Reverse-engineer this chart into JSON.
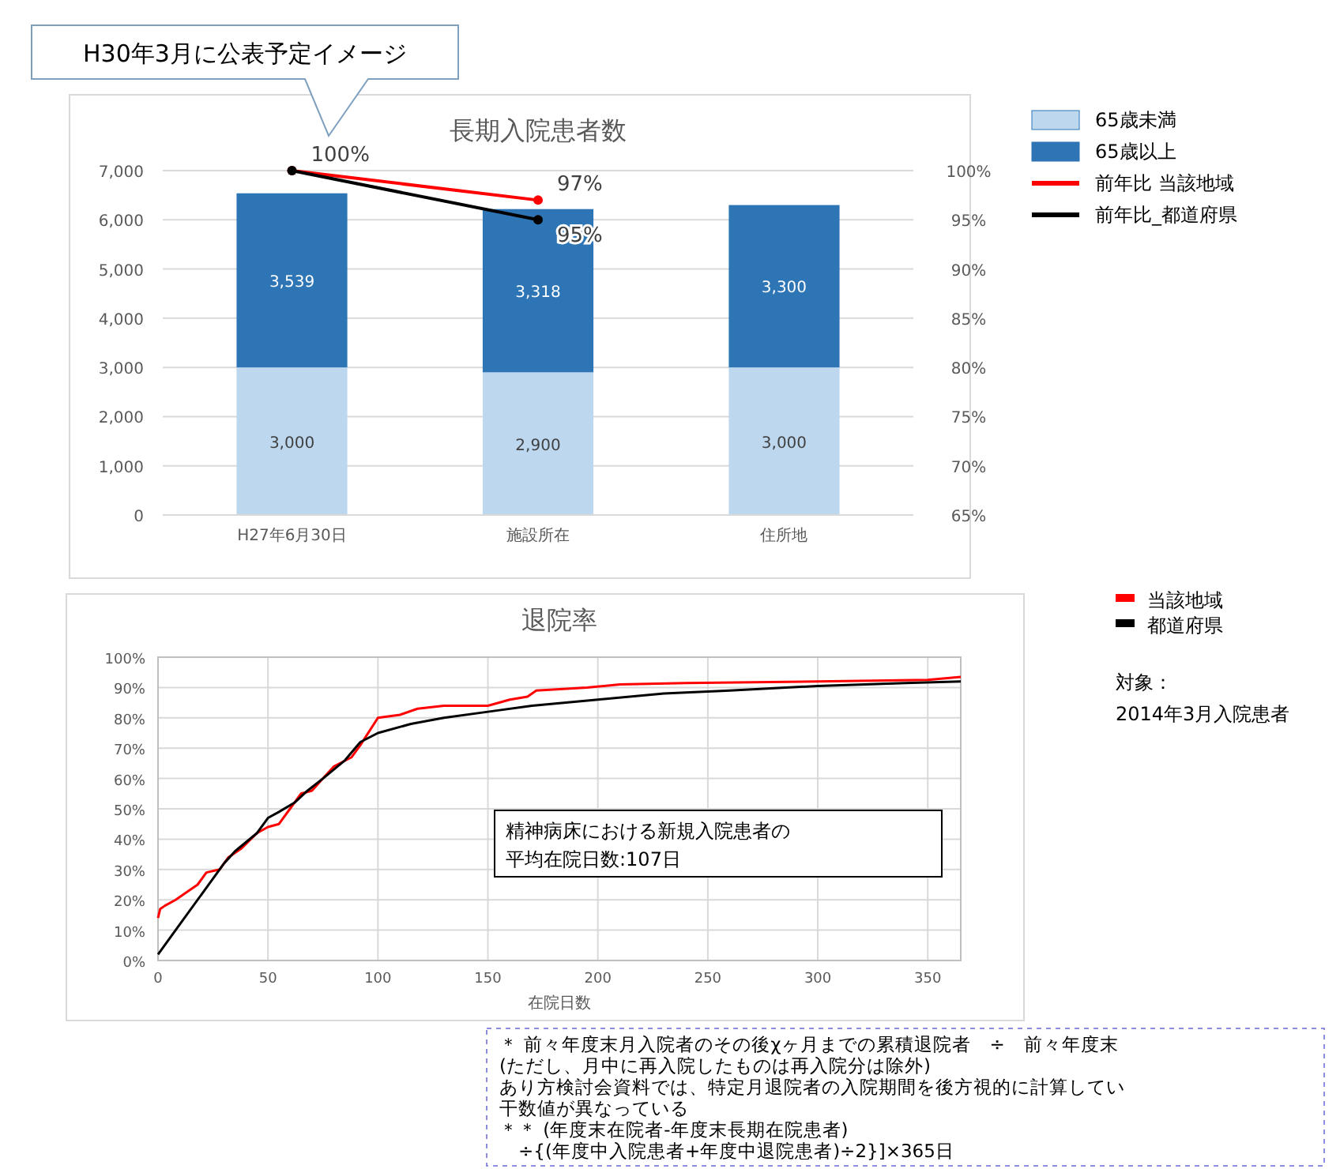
{
  "chart_data": [
    {
      "type": "bar",
      "title": "長期入院患者数",
      "categories": [
        "H27年6月30日",
        "施設所在",
        "住所地"
      ],
      "stacked": true,
      "grid": "y",
      "legend": "right",
      "series": [
        {
          "name": "65歳未満",
          "color": "#bdd7ee",
          "values": [
            3000,
            2900,
            3000
          ],
          "value_labels": [
            "3,000",
            "2,900",
            "3,000"
          ]
        },
        {
          "name": "65歳以上",
          "color": "#2e75b6",
          "values": [
            3539,
            3318,
            3300
          ],
          "value_labels": [
            "3,539",
            "3,318",
            "3,300"
          ]
        },
        {
          "name": "前年比 当該地域",
          "type": "line",
          "axis": "y2",
          "color": "#ff0000",
          "marker": "circle",
          "values": [
            100,
            97,
            null
          ],
          "value_labels": [
            "100%",
            "97%",
            null
          ]
        },
        {
          "name": "前年比_都道府県",
          "type": "line",
          "axis": "y2",
          "color": "#000000",
          "marker": "circle",
          "values": [
            100,
            95,
            null
          ],
          "value_labels": [
            null,
            "95%",
            null
          ]
        }
      ],
      "ylim": [
        0,
        7000
      ],
      "yticks": [
        0,
        {
          "value": 1000,
          "label": "1,000"
        },
        {
          "value": 2000,
          "label": "2,000"
        },
        {
          "value": 3000,
          "label": "3,000"
        },
        {
          "value": 4000,
          "label": "4,000"
        },
        {
          "value": 5000,
          "label": "5,000"
        },
        {
          "value": 6000,
          "label": "6,000"
        },
        {
          "value": 7000,
          "label": "7,000"
        }
      ],
      "y2lim": [
        65,
        100
      ],
      "y2ticks": [
        {
          "value": 65,
          "label": "65%"
        },
        {
          "value": 70,
          "label": "70%"
        },
        {
          "value": 75,
          "label": "75%"
        },
        {
          "value": 80,
          "label": "80%"
        },
        {
          "value": 85,
          "label": "85%"
        },
        {
          "value": 90,
          "label": "90%"
        },
        {
          "value": 95,
          "label": "95%"
        },
        {
          "value": 100,
          "label": "100%"
        }
      ],
      "annotations": [
        "H30年3月に公表予定イメージ"
      ]
    },
    {
      "type": "line",
      "title": "退院率",
      "xlabel": "在院日数",
      "grid": true,
      "legend": "right",
      "marker": "none",
      "series": [
        {
          "name": "当該地域",
          "color": "#ff0000",
          "x": [
            0,
            1,
            3,
            8,
            12,
            18,
            22,
            28,
            32,
            38,
            45,
            50,
            55,
            60,
            65,
            70,
            75,
            80,
            88,
            92,
            100,
            110,
            118,
            130,
            150,
            160,
            168,
            172,
            195,
            210,
            240,
            300,
            350,
            365
          ],
          "values": [
            14,
            17,
            18,
            20,
            22,
            25,
            29,
            30,
            34,
            37,
            42,
            44,
            45,
            50,
            55,
            56,
            60,
            64,
            67,
            71,
            80,
            81,
            83,
            84,
            84,
            86,
            87,
            89,
            90,
            91,
            91.5,
            92,
            92.5,
            93.5
          ]
        },
        {
          "name": "都道府県",
          "color": "#000000",
          "x": [
            0,
            10,
            20,
            30,
            35,
            45,
            50,
            55,
            62,
            68,
            75,
            85,
            92,
            100,
            115,
            130,
            150,
            170,
            200,
            230,
            260,
            300,
            340,
            365
          ],
          "values": [
            2,
            12,
            22,
            32,
            36,
            42,
            47,
            49,
            52,
            56,
            60,
            66,
            72,
            75,
            78,
            80,
            82,
            84,
            86,
            88,
            89,
            90.5,
            91.5,
            92
          ]
        }
      ],
      "xlim": [
        0,
        365
      ],
      "xticks": [
        0,
        50,
        100,
        150,
        200,
        250,
        300,
        350
      ],
      "ylim": [
        0,
        100
      ],
      "yticks": [
        {
          "value": 0,
          "label": "0%"
        },
        {
          "value": 10,
          "label": "10%"
        },
        {
          "value": 20,
          "label": "20%"
        },
        {
          "value": 30,
          "label": "30%"
        },
        {
          "value": 40,
          "label": "40%"
        },
        {
          "value": 50,
          "label": "50%"
        },
        {
          "value": 60,
          "label": "60%"
        },
        {
          "value": 70,
          "label": "70%"
        },
        {
          "value": 80,
          "label": "80%"
        },
        {
          "value": 90,
          "label": "90%"
        },
        {
          "value": 100,
          "label": "100%"
        }
      ],
      "annotations": [
        "対象：",
        "2014年3月入院患者",
        "精神病床における新規入院患者の",
        "平均在院日数:107日",
        "＊ 前々年度末月入院者のその後χヶ月までの累積退院者　÷　前々年度末",
        "(ただし、月中に再入院したものは再入院分は除外)",
        "あり方検討会資料では、特定月退院者の入院期間を後方視的に計算してい",
        "干数値が異なっている",
        "＊＊ (年度末在院者-年度末長期在院患者)",
        "　÷{(年度中入院患者+年度中退院患者)÷2}]×365日"
      ]
    }
  ]
}
